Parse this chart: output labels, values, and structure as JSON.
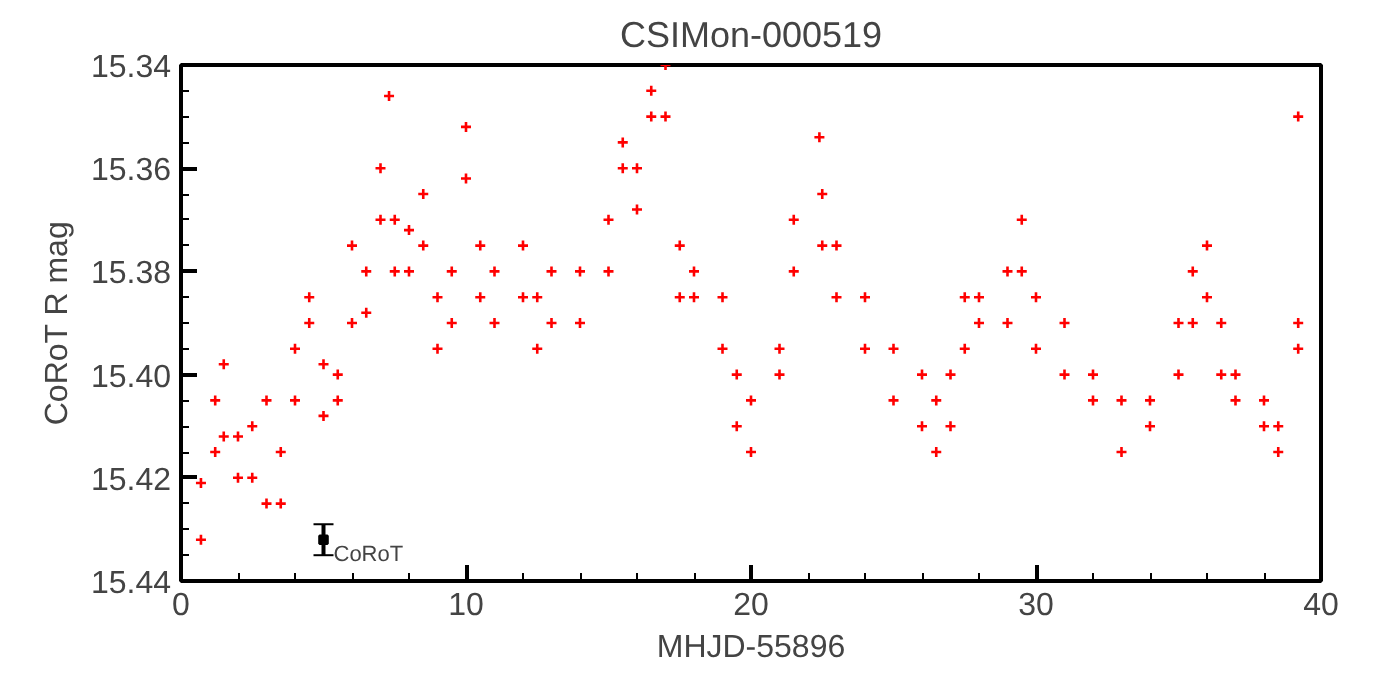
{
  "chart_data": {
    "type": "scatter",
    "title": "CSIMon-000519",
    "xlabel": "MHJD-55896",
    "ylabel": "CoRoT R mag",
    "xlim": [
      0,
      40
    ],
    "xticks": [
      0,
      10,
      20,
      30,
      40
    ],
    "ylim": [
      15.44,
      15.34
    ],
    "yticks": [
      {
        "value": 15.34,
        "label": "15.34"
      },
      {
        "value": 15.36,
        "label": "15.36"
      },
      {
        "value": 15.38,
        "label": "15.38"
      },
      {
        "value": 15.4,
        "label": "15.40"
      },
      {
        "value": 15.42,
        "label": "15.42"
      },
      {
        "value": 15.44,
        "label": "15.44"
      }
    ],
    "grid": false,
    "legend": false,
    "marker": "cross",
    "series": [
      {
        "color": "#ff0000",
        "x": [
          0.7,
          0.7,
          1.2,
          1.2,
          1.5,
          1.5,
          2.0,
          2.0,
          2.5,
          2.5,
          3.0,
          3.0,
          3.5,
          3.5,
          4.0,
          4.0,
          4.5,
          4.5,
          5.0,
          5.0,
          5.5,
          5.5,
          6.0,
          6.0,
          6.5,
          6.5,
          7.0,
          7.0,
          7.3,
          7.5,
          7.5,
          8.0,
          8.0,
          8.5,
          8.5,
          9.0,
          9.0,
          9.5,
          9.5,
          10.0,
          10.0,
          10.5,
          10.5,
          11.0,
          11.0,
          12.0,
          12.0,
          12.5,
          12.5,
          13.0,
          13.0,
          14.0,
          14.0,
          15.0,
          15.0,
          15.5,
          15.5,
          16.0,
          16.0,
          16.5,
          16.5,
          17.0,
          17.0,
          17.5,
          17.5,
          18.0,
          18.0,
          19.0,
          19.0,
          19.5,
          19.5,
          20.0,
          20.0,
          21.0,
          21.0,
          21.5,
          21.5,
          22.4,
          22.5,
          22.5,
          23.0,
          23.0,
          24.0,
          24.0,
          25.0,
          25.0,
          26.0,
          26.0,
          26.5,
          26.5,
          27.0,
          27.0,
          27.5,
          27.5,
          28.0,
          28.0,
          29.0,
          29.0,
          29.5,
          29.5,
          30.0,
          30.0,
          31.0,
          31.0,
          32.0,
          32.0,
          33.0,
          33.0,
          34.0,
          34.0,
          35.0,
          35.0,
          35.5,
          35.5,
          36.0,
          36.0,
          36.5,
          36.5,
          37.0,
          37.0,
          38.0,
          38.0,
          38.5,
          38.5,
          39.2,
          39.2,
          39.2
        ],
        "values": [
          15.421,
          15.432,
          15.405,
          15.415,
          15.398,
          15.412,
          15.412,
          15.42,
          15.41,
          15.42,
          15.405,
          15.425,
          15.415,
          15.425,
          15.395,
          15.405,
          15.385,
          15.39,
          15.398,
          15.408,
          15.4,
          15.405,
          15.375,
          15.39,
          15.38,
          15.388,
          15.36,
          15.37,
          15.346,
          15.37,
          15.38,
          15.372,
          15.38,
          15.365,
          15.375,
          15.385,
          15.395,
          15.38,
          15.39,
          15.352,
          15.362,
          15.375,
          15.385,
          15.38,
          15.39,
          15.375,
          15.385,
          15.385,
          15.395,
          15.38,
          15.39,
          15.38,
          15.39,
          15.37,
          15.38,
          15.355,
          15.36,
          15.36,
          15.368,
          15.345,
          15.35,
          15.34,
          15.35,
          15.375,
          15.385,
          15.38,
          15.385,
          15.385,
          15.395,
          15.4,
          15.41,
          15.405,
          15.415,
          15.395,
          15.4,
          15.37,
          15.38,
          15.354,
          15.365,
          15.375,
          15.375,
          15.385,
          15.385,
          15.395,
          15.395,
          15.405,
          15.4,
          15.41,
          15.405,
          15.415,
          15.4,
          15.41,
          15.385,
          15.395,
          15.385,
          15.39,
          15.38,
          15.39,
          15.37,
          15.38,
          15.385,
          15.395,
          15.39,
          15.4,
          15.4,
          15.405,
          15.405,
          15.415,
          15.405,
          15.41,
          15.39,
          15.4,
          15.38,
          15.39,
          15.375,
          15.385,
          15.39,
          15.4,
          15.4,
          15.405,
          15.405,
          15.41,
          15.41,
          15.415,
          15.35,
          15.39,
          15.395
        ]
      },
      {
        "name": "CoRoT",
        "color": "#000000",
        "marker": "square",
        "x": [
          5
        ],
        "values": [
          15.432
        ],
        "errors": [
          0.003
        ]
      }
    ]
  }
}
